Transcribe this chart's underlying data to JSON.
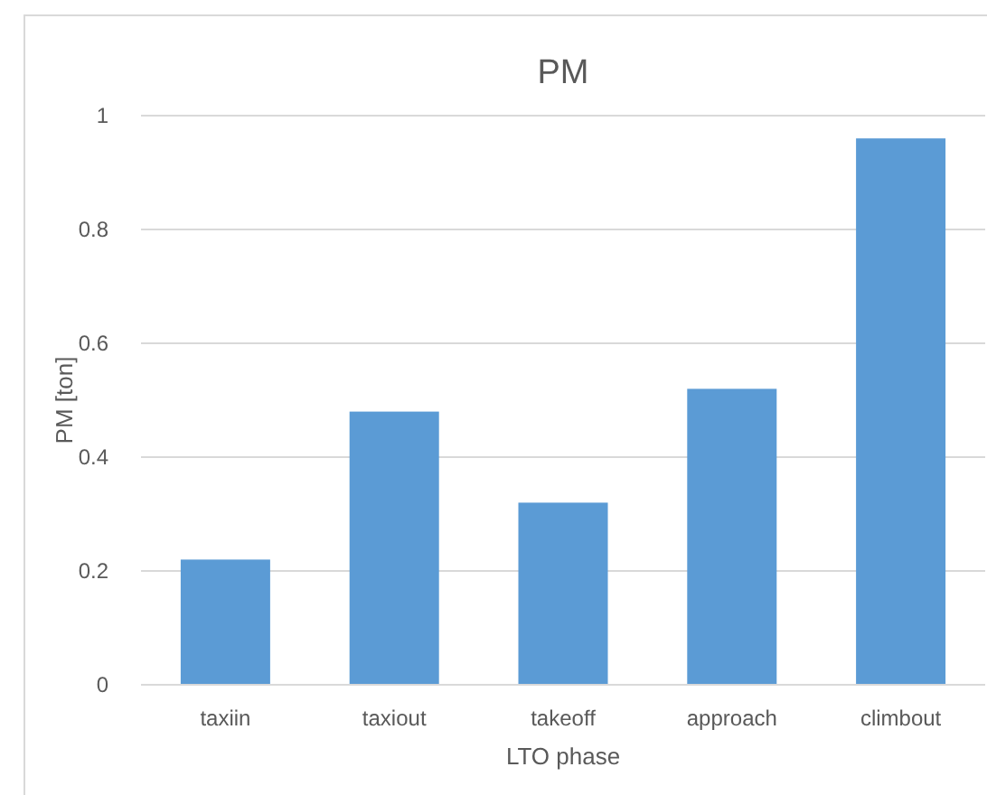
{
  "chart_data": {
    "type": "bar",
    "title": "PM",
    "xlabel": "LTO phase",
    "ylabel": "PM [ton]",
    "categories": [
      "taxiin",
      "taxiout",
      "takeoff",
      "approach",
      "climbout"
    ],
    "values": [
      0.22,
      0.48,
      0.32,
      0.52,
      0.96
    ],
    "color": "#5b9bd5",
    "ylim": [
      0,
      1
    ],
    "yticks": [
      0,
      0.2,
      0.4,
      0.6,
      0.8,
      1
    ],
    "grid": "y"
  }
}
